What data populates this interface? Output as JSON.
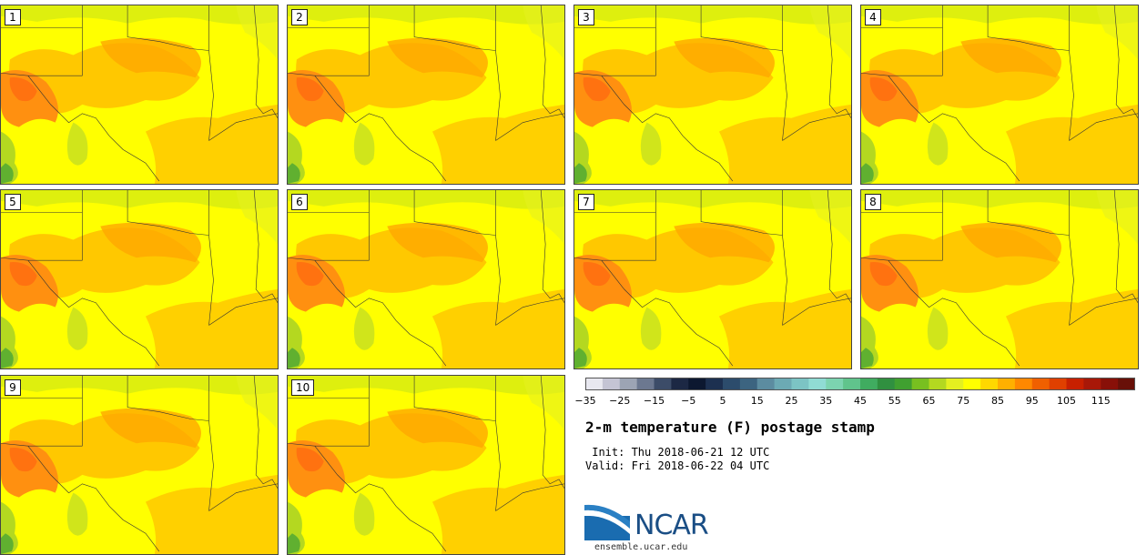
{
  "panels": [
    {
      "number": "1"
    },
    {
      "number": "2"
    },
    {
      "number": "3"
    },
    {
      "number": "4"
    },
    {
      "number": "5"
    },
    {
      "number": "6"
    },
    {
      "number": "7"
    },
    {
      "number": "8"
    },
    {
      "number": "9"
    },
    {
      "number": "10"
    }
  ],
  "colorbar": {
    "colors": [
      "#e8e8f0",
      "#c4c4d4",
      "#9ca4b4",
      "#6c7890",
      "#3c4c68",
      "#1c2844",
      "#0c1830",
      "#1c3050",
      "#2c4c6c",
      "#3c6480",
      "#5c8ca0",
      "#6caab4",
      "#7cc4c4",
      "#90dcd4",
      "#7cd4b0",
      "#60c48c",
      "#40ac60",
      "#309040",
      "#40a030",
      "#78c020",
      "#b4d820",
      "#e4f020",
      "#ffff00",
      "#ffd800",
      "#ffb000",
      "#ff8800",
      "#f06000",
      "#e04000",
      "#c82000",
      "#a81808",
      "#881008",
      "#681008"
    ],
    "ticks": [
      "−35",
      "−25",
      "−15",
      "−5",
      "5",
      "15",
      "25",
      "35",
      "45",
      "55",
      "65",
      "75",
      "85",
      "95",
      "105",
      "115"
    ]
  },
  "title": "2-m temperature (F) postage stamp",
  "init": " Init: Thu 2018-06-21 12 UTC",
  "valid": "Valid: Fri 2018-06-22 04 UTC",
  "logo": {
    "text": "NCAR",
    "site": "ensemble.ucar.edu"
  }
}
